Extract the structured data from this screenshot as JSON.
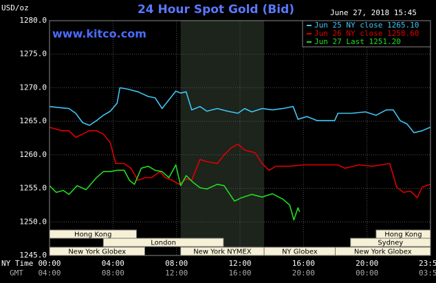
{
  "chart_data": {
    "type": "line",
    "title": "24 Hour Spot Gold (Bid)",
    "subtitle": "June 27, 2018 15:45",
    "source": "www.kitco.com",
    "y_label": "USD/oz",
    "x_label": "NY Time",
    "x2_label": "GMT",
    "xlim": [
      0,
      24
    ],
    "ylim": [
      1245,
      1280
    ],
    "grid": true,
    "xticks": [
      {
        "value": 0,
        "label": "00:00"
      },
      {
        "value": 4,
        "label": "04:00"
      },
      {
        "value": 8,
        "label": "08:00"
      },
      {
        "value": 12,
        "label": "12:00"
      },
      {
        "value": 16,
        "label": "16:00"
      },
      {
        "value": 20,
        "label": "20:00"
      },
      {
        "value": 23.98,
        "label": "23:59"
      }
    ],
    "x2ticks": [
      {
        "value": 0,
        "label": "04:00"
      },
      {
        "value": 4,
        "label": "08:00"
      },
      {
        "value": 8,
        "label": "12:00"
      },
      {
        "value": 12,
        "label": "16:00"
      },
      {
        "value": 16,
        "label": "20:00"
      },
      {
        "value": 20,
        "label": "00:00"
      },
      {
        "value": 23.98,
        "label": "03:59"
      }
    ],
    "yticks": [
      {
        "value": 1245,
        "label": "1245.0"
      },
      {
        "value": 1250,
        "label": "1250.0"
      },
      {
        "value": 1255,
        "label": "1255.0"
      },
      {
        "value": 1260,
        "label": "1260.0"
      },
      {
        "value": 1265,
        "label": "1265.0"
      },
      {
        "value": 1270,
        "label": "1270.0"
      },
      {
        "value": 1275,
        "label": "1275.0"
      },
      {
        "value": 1280,
        "label": "1280.0"
      }
    ],
    "series": [
      {
        "name": "Jun 25 NY close 1265.10",
        "color": "#3fc6f5",
        "x": [
          0,
          0.78,
          1.22,
          1.65,
          2.09,
          2.52,
          2.96,
          3.39,
          3.83,
          4.26,
          4.43,
          4.91,
          5.57,
          6.22,
          6.65,
          7.09,
          7.52,
          7.96,
          8.26,
          8.61,
          8.96,
          9.48,
          9.91,
          10.57,
          11.22,
          11.87,
          12.3,
          12.74,
          13.39,
          14.04,
          14.7,
          15.35,
          15.65,
          16.22,
          16.87,
          17.96,
          18.17,
          19.04,
          19.91,
          20.57,
          21.22,
          21.65,
          22.09,
          22.52,
          22.96,
          23.48,
          23.98
        ],
        "values": [
          1267.2,
          1267.0,
          1266.9,
          1266.2,
          1264.8,
          1264.4,
          1265.1,
          1265.9,
          1266.5,
          1267.7,
          1270.0,
          1269.8,
          1269.4,
          1268.7,
          1268.5,
          1266.9,
          1268.2,
          1269.5,
          1269.2,
          1269.4,
          1266.7,
          1267.2,
          1266.5,
          1266.9,
          1266.5,
          1266.2,
          1266.9,
          1266.4,
          1266.9,
          1266.7,
          1266.9,
          1267.2,
          1265.3,
          1265.7,
          1265.1,
          1265.1,
          1266.2,
          1266.2,
          1266.4,
          1265.9,
          1266.7,
          1266.7,
          1265.1,
          1264.6,
          1263.3,
          1263.6,
          1264.1
        ]
      },
      {
        "name": "Jun 26 NY close 1258.60",
        "color": "#e00000",
        "x": [
          0,
          0.78,
          1.22,
          1.65,
          2.09,
          2.52,
          2.96,
          3.39,
          3.83,
          4.17,
          4.7,
          5.13,
          5.57,
          6,
          6.43,
          6.96,
          7.3,
          7.74,
          8.17,
          8.61,
          8.96,
          9.48,
          9.91,
          10.57,
          11,
          11.43,
          11.87,
          12.3,
          12.96,
          13.39,
          13.83,
          14.26,
          15.13,
          16,
          16.87,
          18.17,
          18.61,
          19.48,
          20.35,
          21.43,
          21.87,
          22.3,
          22.74,
          23.17,
          23.48,
          23.98
        ],
        "values": [
          1264.1,
          1263.6,
          1263.6,
          1262.6,
          1263.1,
          1263.6,
          1263.6,
          1263.1,
          1261.8,
          1258.7,
          1258.7,
          1258.0,
          1256.2,
          1256.6,
          1256.6,
          1257.5,
          1256.6,
          1256.2,
          1255.6,
          1256.4,
          1256.2,
          1259.3,
          1259.0,
          1258.7,
          1260.0,
          1261.0,
          1261.6,
          1260.7,
          1260.3,
          1258.7,
          1257.7,
          1258.3,
          1258.3,
          1258.5,
          1258.5,
          1258.5,
          1258.0,
          1258.5,
          1258.3,
          1258.7,
          1255.2,
          1254.4,
          1254.6,
          1253.6,
          1255.2,
          1255.6
        ]
      },
      {
        "name": "Jun 27 Last 1251.20",
        "color": "#22dd22",
        "x": [
          0,
          0.43,
          0.87,
          1.22,
          1.74,
          2.3,
          2.96,
          3.39,
          3.83,
          4.26,
          4.7,
          5.04,
          5.35,
          5.78,
          6.22,
          6.65,
          7.09,
          7.52,
          7.96,
          8.26,
          8.61,
          9.04,
          9.48,
          9.91,
          10.57,
          11,
          11.65,
          12.09,
          12.74,
          13.39,
          14.04,
          14.7,
          15.13,
          15.39,
          15.65,
          15.75
        ],
        "values": [
          1255.4,
          1254.4,
          1254.7,
          1254.1,
          1255.4,
          1254.8,
          1256.6,
          1257.5,
          1257.5,
          1257.7,
          1257.7,
          1256.2,
          1255.6,
          1258.0,
          1258.3,
          1257.7,
          1257.5,
          1256.6,
          1258.5,
          1255.4,
          1256.9,
          1255.9,
          1255.1,
          1254.9,
          1255.6,
          1255.4,
          1253.1,
          1253.6,
          1254.1,
          1253.7,
          1254.2,
          1253.4,
          1252.5,
          1250.3,
          1252.1,
          1251.5
        ]
      }
    ],
    "sessions": [
      {
        "label": "Hong Kong",
        "start": 0,
        "end": 5.48,
        "row": 0
      },
      {
        "label": "London",
        "start": 3.39,
        "end": 10.96,
        "row": 1
      },
      {
        "label": "New York Globex",
        "start": 0,
        "end": 6,
        "row": 2
      },
      {
        "label": "New York NYMEX",
        "start": 8.26,
        "end": 13.52,
        "row": 2,
        "shade": true
      },
      {
        "label": "NY Globex",
        "start": 13.52,
        "end": 18,
        "row": 2
      },
      {
        "label": "Hong Kong",
        "start": 20.57,
        "end": 24,
        "row": 0
      },
      {
        "label": "Sydney",
        "start": 18.96,
        "end": 24,
        "row": 1
      },
      {
        "label": "New York Globex",
        "start": 18,
        "end": 24,
        "row": 2
      }
    ]
  }
}
